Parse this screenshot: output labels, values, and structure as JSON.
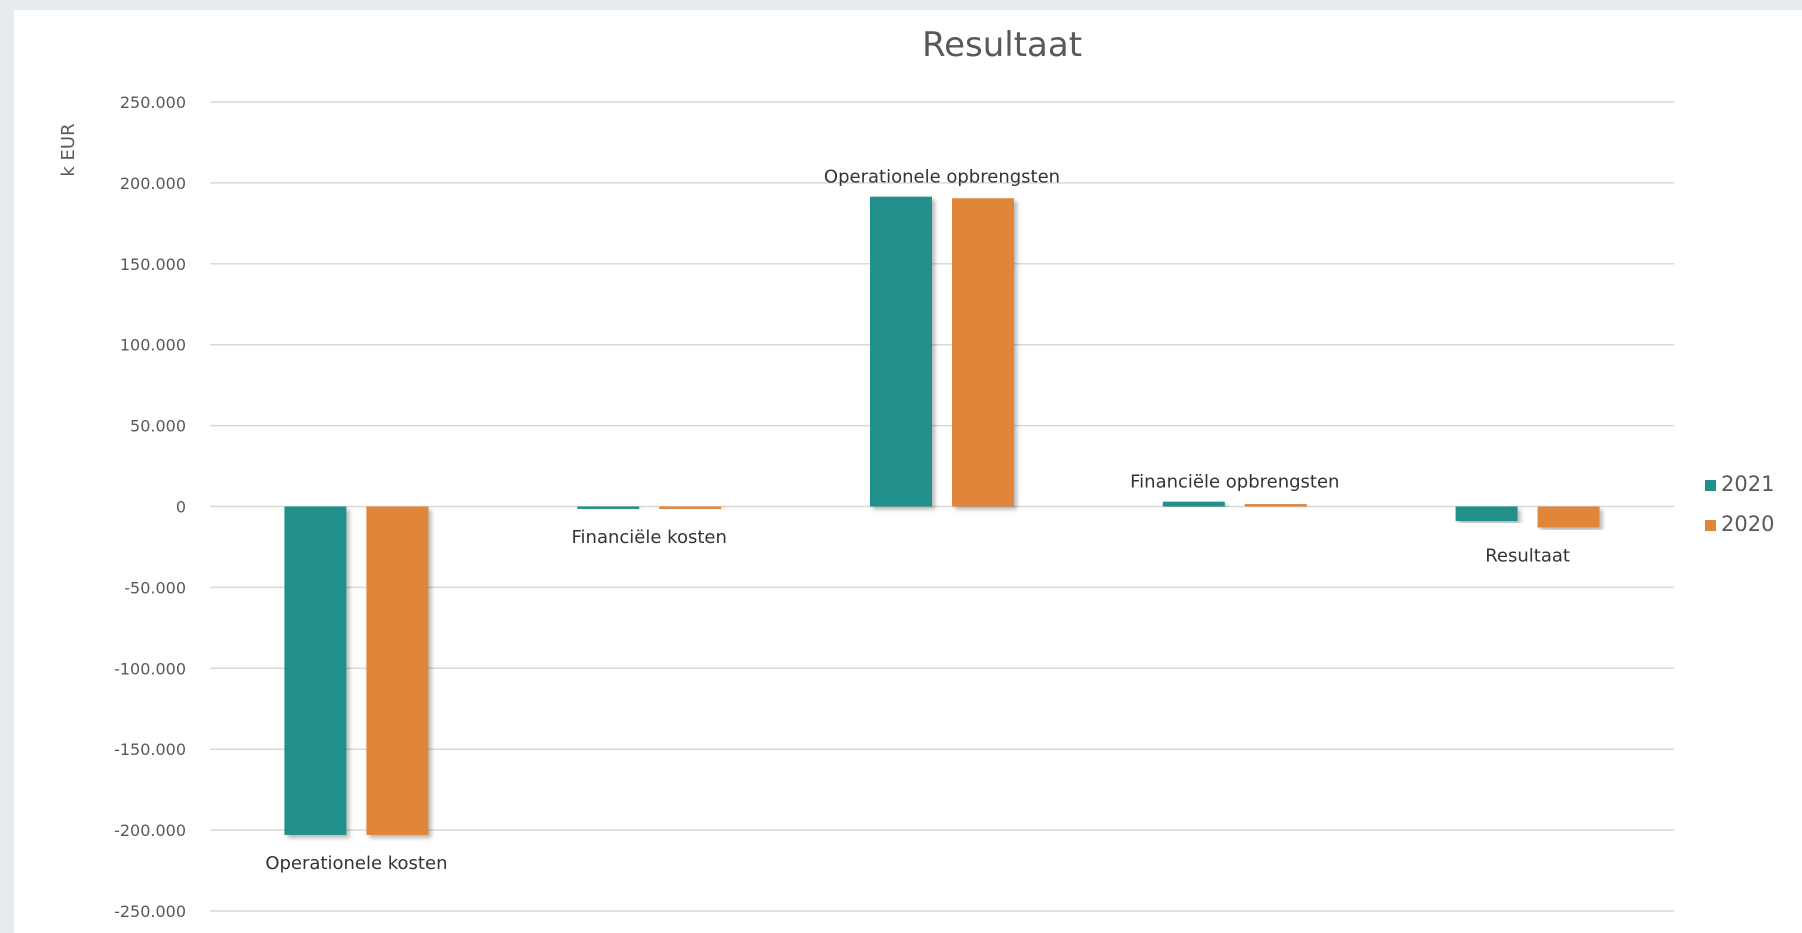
{
  "chart_data": {
    "type": "bar",
    "title": "Resultaat",
    "ylabel": "k EUR",
    "xlabel": "",
    "ylim": [
      -250000,
      250000
    ],
    "yticks": [
      250000,
      200000,
      150000,
      100000,
      50000,
      0,
      -50000,
      -100000,
      -150000,
      -200000,
      -250000
    ],
    "ytick_labels": [
      "250.000",
      "200.000",
      "150.000",
      "100.000",
      "50.000",
      "0",
      "-50.000",
      "-100.000",
      "-150.000",
      "-200.000",
      "-250.000"
    ],
    "grid": true,
    "legend": "right",
    "categories": [
      "Operationele kosten",
      "Financiële kosten",
      "Operationele opbrengsten",
      "Financiële opbrengsten",
      "Resultaat"
    ],
    "series": [
      {
        "name": "2021",
        "color": "#21908a",
        "values": [
          -203000,
          -1500,
          191500,
          3000,
          -9000
        ]
      },
      {
        "name": "2020",
        "color": "#e0863a",
        "values": [
          -203000,
          -1500,
          190500,
          1500,
          -13000
        ]
      }
    ]
  }
}
